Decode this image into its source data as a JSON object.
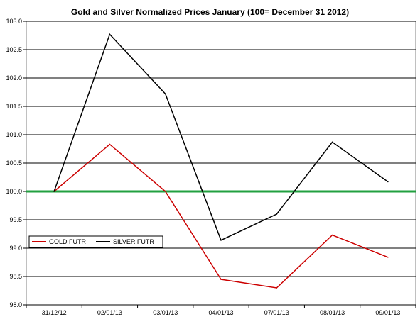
{
  "chart_data": {
    "type": "line",
    "title": "Gold and Silver Normalized Prices January (100= December 31 2012)",
    "xlabel": "",
    "ylabel": "",
    "categories": [
      "31/12/12",
      "02/01/13",
      "03/01/13",
      "04/01/13",
      "07/01/13",
      "08/01/13",
      "09/01/13"
    ],
    "ylim": [
      98.0,
      103.0
    ],
    "yticks": [
      "98.0",
      "98.5",
      "99.0",
      "99.5",
      "100.0",
      "100.5",
      "101.0",
      "101.5",
      "102.0",
      "102.5",
      "103.0"
    ],
    "grid": true,
    "legend_position": "bottom-left",
    "reference_line": 100.0,
    "series": [
      {
        "name": "GOLD  FUTR",
        "color": "#cc0000",
        "values": [
          100.0,
          100.83,
          100.0,
          98.45,
          98.3,
          99.23,
          98.84
        ]
      },
      {
        "name": "SILVER  FUTR",
        "color": "#000000",
        "values": [
          100.0,
          102.77,
          101.72,
          99.14,
          99.6,
          100.87,
          100.17
        ]
      }
    ],
    "reference_color": "#22a040"
  }
}
